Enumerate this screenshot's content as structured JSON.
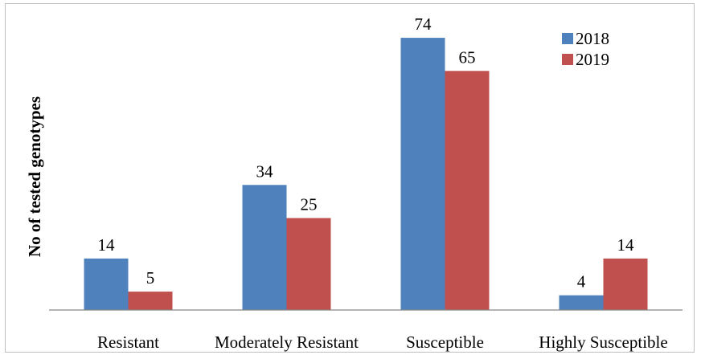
{
  "chart_data": {
    "type": "bar",
    "title": "",
    "xlabel": "",
    "ylabel": "No of tested genotypes",
    "categories": [
      "Resistant",
      "Moderately Resistant",
      "Susceptible",
      "Highly Susceptible"
    ],
    "series": [
      {
        "name": "2018",
        "values": [
          14,
          34,
          74,
          4
        ],
        "color": "#4f81bd"
      },
      {
        "name": "2019",
        "values": [
          5,
          25,
          65,
          14
        ],
        "color": "#c0504d"
      }
    ],
    "ylim": [
      0,
      80
    ],
    "grid": false,
    "legend": "top-right",
    "data_labels": true
  }
}
